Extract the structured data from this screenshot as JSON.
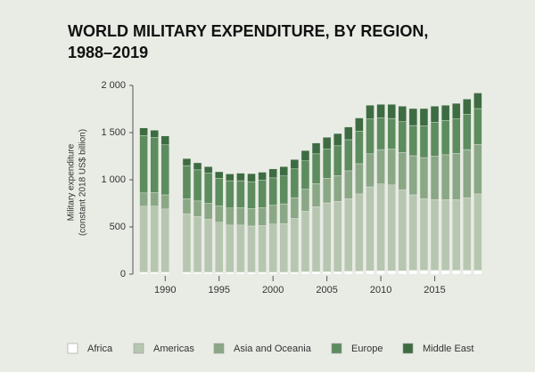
{
  "chart_data": {
    "type": "stacked-bar",
    "title": [
      "WORLD MILITARY EXPENDITURE, BY REGION,",
      "1988–2019"
    ],
    "y_label": [
      "Military expenditure",
      "(constant 2018 US$ billion)"
    ],
    "x": [
      1988,
      1989,
      1990,
      1992,
      1993,
      1994,
      1995,
      1996,
      1997,
      1998,
      1999,
      2000,
      2001,
      2002,
      2003,
      2004,
      2005,
      2006,
      2007,
      2008,
      2009,
      2010,
      2011,
      2012,
      2013,
      2014,
      2015,
      2016,
      2017,
      2018,
      2019
    ],
    "xlim": [
      1987,
      2020
    ],
    "xticks": [
      1990,
      1995,
      2000,
      2005,
      2010,
      2015
    ],
    "ylim": [
      0,
      2000
    ],
    "yticks": [
      0,
      500,
      {
        "value": 1000,
        "label": "1 000"
      },
      {
        "value": 1500,
        "label": "1 500"
      },
      {
        "value": 2000,
        "label": "2 000"
      }
    ],
    "series": [
      {
        "name": "Africa",
        "color": "#ffffff",
        "values": [
          20,
          20,
          20,
          20,
          20,
          20,
          20,
          20,
          20,
          20,
          20,
          20,
          20,
          20,
          25,
          25,
          25,
          25,
          30,
          30,
          35,
          35,
          35,
          35,
          40,
          40,
          40,
          40,
          40,
          40,
          40
        ]
      },
      {
        "name": "Americas",
        "color": "#b7c6b0",
        "values": [
          700,
          700,
          670,
          620,
          590,
          560,
          530,
          500,
          500,
          490,
          495,
          510,
          515,
          570,
          640,
          690,
          730,
          745,
          770,
          820,
          890,
          920,
          910,
          860,
          800,
          760,
          750,
          750,
          750,
          770,
          810
        ]
      },
      {
        "name": "Asia and Oceania",
        "color": "#8ba886",
        "values": [
          140,
          145,
          150,
          160,
          165,
          170,
          175,
          180,
          185,
          185,
          190,
          200,
          210,
          220,
          235,
          245,
          260,
          275,
          295,
          320,
          350,
          365,
          380,
          395,
          415,
          435,
          460,
          475,
          490,
          510,
          525
        ]
      },
      {
        "name": "Europe",
        "color": "#5d8c5e",
        "values": [
          610,
          585,
          530,
          350,
          330,
          320,
          290,
          290,
          285,
          285,
          290,
          290,
          295,
          305,
          300,
          315,
          310,
          315,
          330,
          345,
          370,
          335,
          325,
          325,
          320,
          335,
          360,
          365,
          365,
          375,
          380
        ]
      },
      {
        "name": "Middle East",
        "color": "#3e6c42",
        "values": [
          80,
          75,
          95,
          75,
          75,
          70,
          70,
          72,
          80,
          85,
          85,
          95,
          100,
          100,
          110,
          115,
          125,
          130,
          135,
          140,
          145,
          145,
          150,
          165,
          180,
          185,
          170,
          160,
          165,
          160,
          165
        ]
      }
    ]
  }
}
